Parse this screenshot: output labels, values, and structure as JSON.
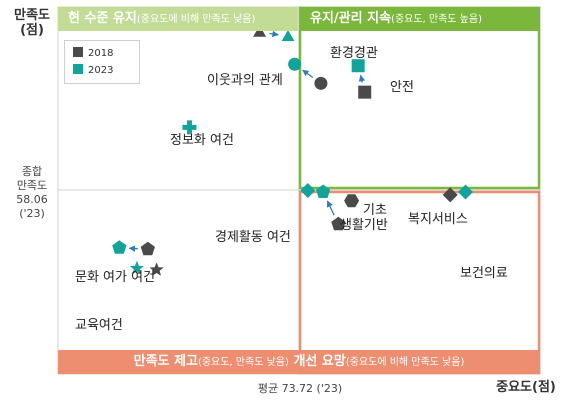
{
  "axes": {
    "y_label": "만족도",
    "y_unit": "(점)",
    "x_label": "중요도(점)",
    "y_avg_lines": [
      "종합",
      "만족도",
      "58.06",
      "('23)"
    ],
    "x_avg_label": "평균 73.72 ('23)"
  },
  "quadrants": {
    "top_left": {
      "title": "현 수준 유지",
      "note": "(중요도에 비해 만족도 낮음)"
    },
    "top_right": {
      "title": "유지/관리 지속",
      "note": "(중요도, 만족도 높음)"
    },
    "bottom": {
      "title": "만족도 제고",
      "note": "(중요도, 만족도 낮음)",
      "title2": "개선 요망",
      "note2": "(중요도에 비해 만족도 낮음)"
    }
  },
  "colors": {
    "y2018": "#4a4a4a",
    "y2023": "#12a39a",
    "green_band": "#7ab73a",
    "light_green_band": "#c2dc95",
    "orange_band": "#ee8e70"
  },
  "chart_data": {
    "type": "scatter",
    "series": [
      {
        "name": "2018"
      },
      {
        "name": "2023"
      }
    ],
    "xlim": [
      63,
      85
    ],
    "ylim": [
      43,
      68
    ],
    "x_avg": 73.72,
    "y_avg": 58.06,
    "points": [
      {
        "label": "환경경관",
        "marker": "triangle",
        "x2018": 72.2,
        "y2018": 66.3,
        "x2023": 73.5,
        "y2023": 66.0
      },
      {
        "label": "이웃과의 관계",
        "marker": "circle",
        "x2018": 75.0,
        "y2018": 62.8,
        "x2023": 73.8,
        "y2023": 64.1
      },
      {
        "label": "안전",
        "marker": "square",
        "x2018": 77.0,
        "y2018": 62.2,
        "x2023": 76.7,
        "y2023": 64.0
      },
      {
        "label": "정보화 여건",
        "marker": "cross",
        "x2018": null,
        "y2018": null,
        "x2023": 69.0,
        "y2023": 59.8
      },
      {
        "label": "경제활동 여건",
        "marker": "diamond",
        "x2018": null,
        "y2018": null,
        "x2023": 74.4,
        "y2023": 55.5
      },
      {
        "label": "기초 생활기반",
        "marker": "pentagon",
        "x2018": 75.8,
        "y2018": 53.2,
        "x2023": 75.1,
        "y2023": 55.4
      },
      {
        "label": "기초 생활기반 (이동)",
        "marker": "hexagon",
        "x2018": 76.4,
        "y2018": 54.8,
        "x2023": null,
        "y2023": null
      },
      {
        "label": "복지서비스",
        "marker": "moon",
        "x2018": 79.2,
        "y2018": 55.5,
        "x2023": 78.5,
        "y2023": 55.8
      },
      {
        "label": "보건의료",
        "marker": "diamond",
        "x2018": 80.9,
        "y2018": 55.2,
        "x2023": 81.6,
        "y2023": 55.4
      },
      {
        "label": "문화 여가 여건",
        "marker": "pentagon",
        "x2018": 67.1,
        "y2018": 51.5,
        "x2023": 65.8,
        "y2023": 51.6
      },
      {
        "label": "교육여건",
        "marker": "star",
        "x2018": 67.5,
        "y2018": 50.1,
        "x2023": 66.6,
        "y2023": 50.2
      }
    ],
    "annotations": {
      "env": "환경경관",
      "neighbor": "이웃과의 관계",
      "safety": "안전",
      "info": "정보화 여건",
      "econ": "경제활동 여건",
      "basic1": "기초",
      "basic2": "생활기반",
      "welfare": "복지서비스",
      "health": "보건의료",
      "culture": "문화 여가 여건",
      "edu": "교육여건"
    },
    "legend": {
      "placement": "top-left",
      "y2018": "2018",
      "y2023": "2023"
    }
  }
}
